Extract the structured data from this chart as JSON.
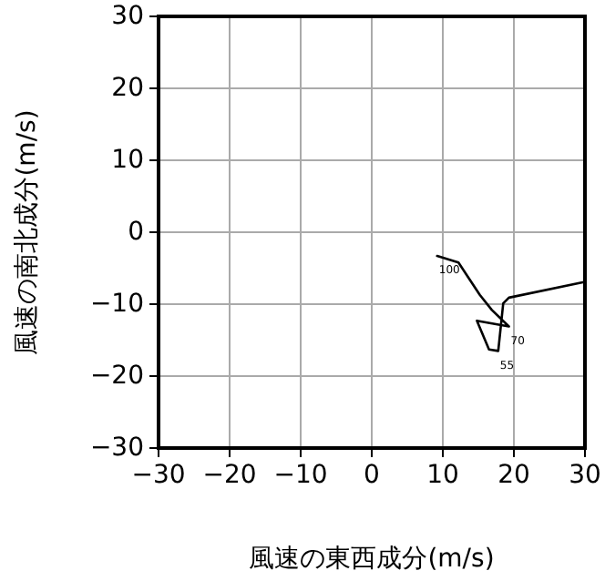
{
  "chart_data": {
    "type": "line",
    "xlabel": "風速の東西成分(m/s)",
    "ylabel": "風速の南北成分(m/s)",
    "x": [
      9.2,
      12.2,
      15.2,
      16.9,
      19.3,
      14.8,
      16.5,
      17.8,
      18.5,
      19.3,
      30
    ],
    "series": [
      {
        "color": "#000000",
        "values": [
          -3.3,
          -4.2,
          -8.7,
          -10.8,
          -13.1,
          -12.3,
          -16.3,
          -16.5,
          -9.9,
          -9.1,
          -6.9
        ]
      }
    ],
    "annotations": [
      {
        "text": "100",
        "x": 9.2,
        "y": -3.3
      },
      {
        "text": "70",
        "x": 19.3,
        "y": -13.1
      },
      {
        "text": "55",
        "x": 17.8,
        "y": -16.5
      }
    ],
    "xlim": [
      -30,
      30
    ],
    "ylim": [
      -30,
      30
    ],
    "xticks": [
      -30,
      -20,
      -10,
      0,
      10,
      20,
      30
    ],
    "yticks": [
      -30,
      -20,
      -10,
      0,
      10,
      20,
      30
    ],
    "grid": true,
    "marker": "none",
    "line_style": "solid"
  }
}
